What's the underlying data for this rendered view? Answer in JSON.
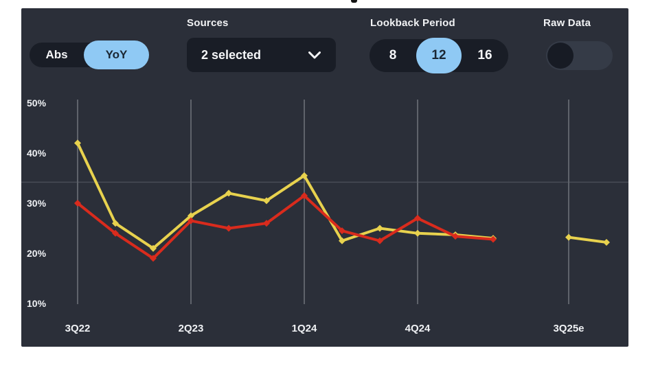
{
  "controls": {
    "mode_toggle": {
      "options": [
        "Abs",
        "YoY"
      ],
      "selected": "YoY"
    },
    "sources": {
      "label": "Sources",
      "value": "2 selected"
    },
    "lookback": {
      "label": "Lookback Period",
      "options": [
        "8",
        "12",
        "16"
      ],
      "selected": "12"
    },
    "raw_data": {
      "label": "Raw Data",
      "state": "off"
    }
  },
  "colors": {
    "panel_bg": "#2b2f39",
    "control_bg": "#191d26",
    "accent_blue": "#8fc9f4",
    "toggle_track": "#353b47",
    "series_yellow": "#e8d24e",
    "series_red": "#d92b1d",
    "gridline": "#5f636b",
    "reference_line": "#494d56"
  },
  "chart_data": {
    "type": "line",
    "unit": "%",
    "ylim": [
      10,
      50
    ],
    "y_ticks": [
      {
        "label": "50%",
        "value": 50
      },
      {
        "label": "40%",
        "value": 40
      },
      {
        "label": "30%",
        "value": 30
      },
      {
        "label": "20%",
        "value": 20
      },
      {
        "label": "10%",
        "value": 10
      }
    ],
    "x_ticks": [
      {
        "label": "3Q22",
        "x_index": 0
      },
      {
        "label": "2Q23",
        "x_index": 3
      },
      {
        "label": "1Q24",
        "x_index": 6
      },
      {
        "label": "4Q24",
        "x_index": 9
      },
      {
        "label": "3Q25e",
        "x_index": 13
      }
    ],
    "quarters": [
      "3Q22",
      "4Q22",
      "1Q23",
      "2Q23",
      "3Q23",
      "4Q23",
      "1Q24",
      "2Q24",
      "3Q24",
      "4Q24",
      "1Q25",
      "2Q25"
    ],
    "series": [
      {
        "name": "source-1-yoy",
        "color": "#e8d24e",
        "estimate": false,
        "x_indices": [
          0,
          1,
          2,
          3,
          4,
          5,
          6,
          7,
          8,
          9,
          10,
          11
        ],
        "values": [
          42,
          26,
          21,
          27.5,
          32,
          30.5,
          35.5,
          22.5,
          25,
          24,
          23.7,
          23
        ]
      },
      {
        "name": "source-1-yoy-estimate",
        "color": "#e8d24e",
        "estimate": true,
        "x_indices": [
          13,
          14
        ],
        "values": [
          23.2,
          22.2
        ]
      },
      {
        "name": "source-2-yoy",
        "color": "#d92b1d",
        "estimate": false,
        "x_indices": [
          0,
          1,
          2,
          3,
          4,
          5,
          6,
          7,
          8,
          9,
          10,
          11
        ],
        "values": [
          30,
          24,
          19,
          26.5,
          25,
          26,
          31.5,
          24.5,
          22.5,
          27,
          23.4,
          22.8
        ]
      }
    ],
    "reference_line_value": 34.2,
    "grid": {
      "vertical": true,
      "horizontal": "single-reference-line"
    },
    "legend": "none"
  }
}
